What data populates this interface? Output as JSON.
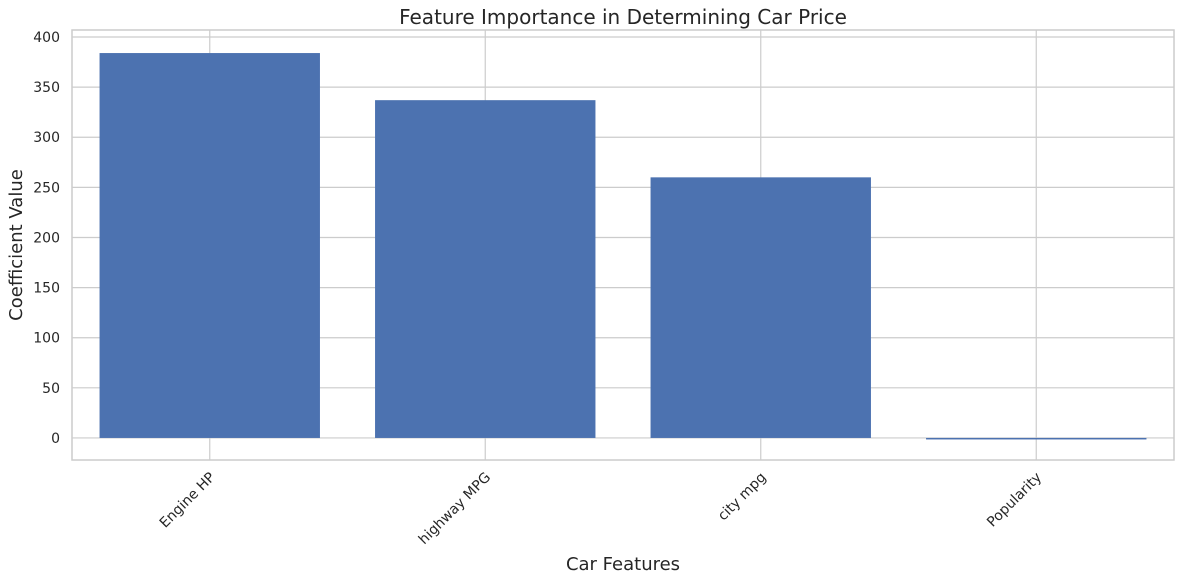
{
  "chart_data": {
    "type": "bar",
    "title": "Feature Importance in Determining Car Price",
    "xlabel": "Car Features",
    "ylabel": "Coefficient Value",
    "categories": [
      "Engine HP",
      "highway MPG",
      "city mpg",
      "Popularity"
    ],
    "values": [
      384,
      337,
      260,
      -1.5
    ],
    "ylim": [
      -22,
      407
    ],
    "yticks": [
      0,
      50,
      100,
      150,
      200,
      250,
      300,
      350,
      400
    ],
    "grid": true,
    "bar_color": "#4c72b0",
    "x_tick_rotation_deg": 45
  }
}
